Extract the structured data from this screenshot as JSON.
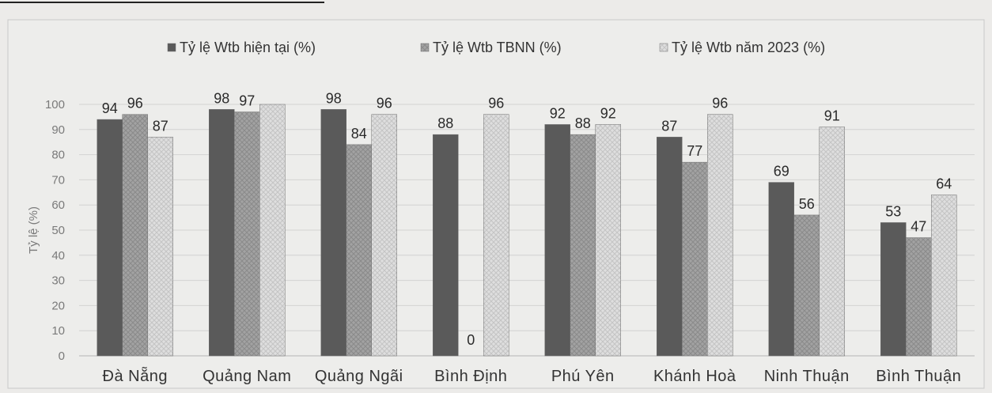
{
  "chart_data": {
    "type": "bar",
    "categories": [
      "Đà Nẵng",
      "Quảng Nam",
      "Quảng Ngãi",
      "Bình Định",
      "Phú Yên",
      "Khánh Hoà",
      "Ninh Thuận",
      "Bình Thuận"
    ],
    "series": [
      {
        "name": "Tỷ lệ Wtb hiện tại (%)",
        "values": [
          94,
          98,
          98,
          88,
          92,
          87,
          69,
          53
        ],
        "data_labels": [
          "94",
          "98",
          "98",
          "88",
          "92",
          "87",
          "69",
          "53"
        ]
      },
      {
        "name": "Tỷ lệ Wtb TBNN (%)",
        "values": [
          96,
          97,
          84,
          0,
          88,
          77,
          56,
          47
        ],
        "data_labels": [
          "96",
          "97",
          "84",
          "0",
          "88",
          "77",
          "56",
          "47"
        ]
      },
      {
        "name": "Tỷ lệ Wtb năm 2023 (%)",
        "values": [
          87,
          100,
          96,
          96,
          92,
          96,
          91,
          64
        ],
        "data_labels": [
          "87",
          "",
          "96",
          "96",
          "92",
          "96",
          "91",
          "64"
        ]
      }
    ],
    "title": "",
    "xlabel": "",
    "ylabel": "Tỷ lệ (%)",
    "ylim": [
      0,
      100
    ],
    "yticks": [
      0,
      10,
      20,
      30,
      40,
      50,
      60,
      70,
      80,
      90,
      100
    ],
    "grid": true,
    "legend_position": "top",
    "colors": [
      "#5a5a5a",
      "#9c9c9c",
      "#dcdcdc"
    ]
  }
}
